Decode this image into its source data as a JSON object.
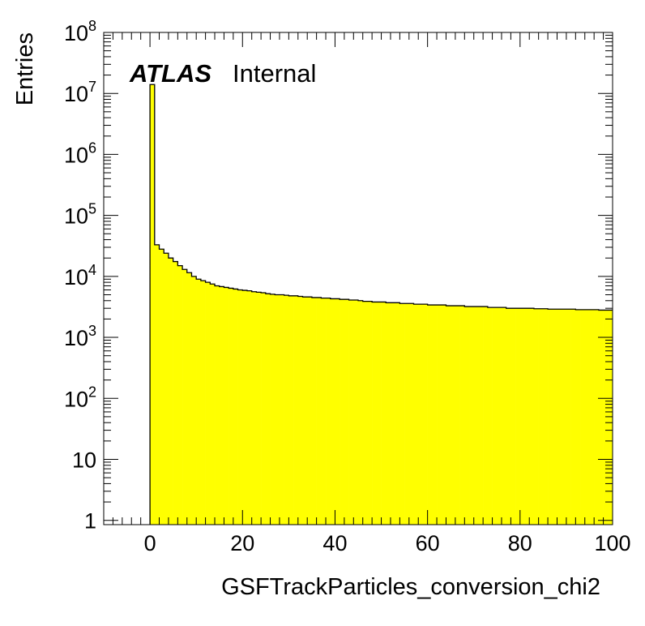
{
  "chart_data": {
    "type": "histogram",
    "title": "",
    "xlabel": "GSFTrackParticles_conversion_chi2",
    "ylabel": "Entries",
    "x_range": [
      -10,
      100
    ],
    "y_range": [
      0.85,
      100000000
    ],
    "y_scale": "log",
    "bin_width": 1,
    "bin_start": 0,
    "x_tick_labels": [
      "0",
      "20",
      "40",
      "60",
      "80",
      "100"
    ],
    "y_tick_labels": [
      {
        "value": 1,
        "base": "1",
        "exp": ""
      },
      {
        "value": 10,
        "base": "10",
        "exp": ""
      },
      {
        "value": 100,
        "base": "10",
        "exp": "2"
      },
      {
        "value": 1000,
        "base": "10",
        "exp": "3"
      },
      {
        "value": 10000,
        "base": "10",
        "exp": "4"
      },
      {
        "value": 100000,
        "base": "10",
        "exp": "5"
      },
      {
        "value": 1000000,
        "base": "10",
        "exp": "6"
      },
      {
        "value": 10000000,
        "base": "10",
        "exp": "7"
      },
      {
        "value": 100000000,
        "base": "10",
        "exp": "8"
      }
    ],
    "values": [
      14000000,
      33000,
      28000,
      24000,
      20000,
      17500,
      15000,
      13000,
      11500,
      10000,
      9000,
      8500,
      8000,
      7500,
      7000,
      6800,
      6600,
      6400,
      6200,
      6000,
      5900,
      5800,
      5600,
      5500,
      5400,
      5200,
      5100,
      5000,
      5000,
      4900,
      4800,
      4800,
      4700,
      4600,
      4600,
      4500,
      4500,
      4400,
      4400,
      4300,
      4300,
      4200,
      4200,
      4100,
      4100,
      4000,
      3900,
      3900,
      3800,
      3800,
      3800,
      3700,
      3700,
      3700,
      3600,
      3600,
      3600,
      3500,
      3500,
      3500,
      3400,
      3400,
      3400,
      3400,
      3300,
      3300,
      3300,
      3300,
      3200,
      3200,
      3200,
      3200,
      3200,
      3100,
      3100,
      3100,
      3100,
      3000,
      3000,
      3000,
      3000,
      3000,
      3000,
      2950,
      2950,
      2950,
      2900,
      2900,
      2900,
      2900,
      2900,
      2900,
      2850,
      2850,
      2850,
      2850,
      2850,
      2800,
      2800,
      2800
    ],
    "fill_color": "#ffff00",
    "line_color": "#000000",
    "legend": "none",
    "grid": false
  },
  "label": {
    "experiment": "ATLAS",
    "status": "Internal"
  }
}
